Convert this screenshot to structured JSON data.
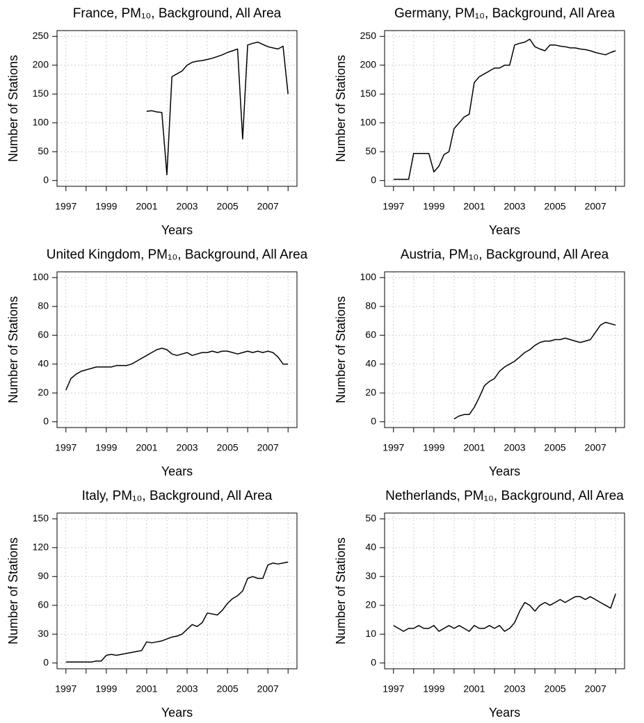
{
  "chart_data": [
    {
      "type": "line",
      "title": "France, PM₁₀, Background, All Area",
      "xlabel": "Years",
      "ylabel": "Number of Stations",
      "color": "#000000",
      "grid": true,
      "x": [
        1997,
        1997.25,
        1997.5,
        1997.75,
        1998,
        1998.25,
        1998.5,
        1998.75,
        1999,
        1999.25,
        1999.5,
        1999.75,
        2000,
        2000.25,
        2000.5,
        2000.75,
        2001,
        2001.25,
        2001.5,
        2001.75,
        2002,
        2002.25,
        2002.5,
        2002.75,
        2003,
        2003.25,
        2003.5,
        2003.75,
        2004,
        2004.25,
        2004.5,
        2004.75,
        2005,
        2005.25,
        2005.5,
        2005.75,
        2006,
        2006.25,
        2006.5,
        2006.75,
        2007,
        2007.25,
        2007.5,
        2007.75,
        2008
      ],
      "values": [
        null,
        null,
        null,
        null,
        null,
        null,
        null,
        null,
        null,
        null,
        null,
        null,
        null,
        null,
        null,
        null,
        120,
        121,
        119,
        118,
        10,
        180,
        185,
        190,
        200,
        205,
        207,
        208,
        210,
        212,
        215,
        218,
        222,
        225,
        228,
        72,
        235,
        238,
        240,
        236,
        232,
        230,
        228,
        233,
        150
      ],
      "xlim": [
        1996.56,
        2008.44
      ],
      "xticks": [
        1997,
        1999,
        2001,
        2003,
        2005,
        2007
      ],
      "xminor": [
        1998,
        2000,
        2002,
        2004,
        2006,
        2008
      ],
      "ylim": [
        -10,
        260
      ],
      "yticks": [
        0,
        50,
        100,
        150,
        200,
        250
      ]
    },
    {
      "type": "line",
      "title": "Germany, PM₁₀, Background, All Area",
      "xlabel": "Years",
      "ylabel": "Number of Stations",
      "color": "#000000",
      "grid": true,
      "x": [
        1997,
        1997.25,
        1997.5,
        1997.75,
        1998,
        1998.25,
        1998.5,
        1998.75,
        1999,
        1999.25,
        1999.5,
        1999.75,
        2000,
        2000.25,
        2000.5,
        2000.75,
        2001,
        2001.25,
        2001.5,
        2001.75,
        2002,
        2002.25,
        2002.5,
        2002.75,
        2003,
        2003.25,
        2003.5,
        2003.75,
        2004,
        2004.25,
        2004.5,
        2004.75,
        2005,
        2005.25,
        2005.5,
        2005.75,
        2006,
        2006.25,
        2006.5,
        2006.75,
        2007,
        2007.25,
        2007.5,
        2007.75,
        2008
      ],
      "values": [
        2,
        2,
        2,
        2,
        47,
        47,
        47,
        47,
        15,
        25,
        45,
        50,
        90,
        100,
        110,
        115,
        170,
        180,
        185,
        190,
        195,
        195,
        200,
        200,
        235,
        238,
        240,
        245,
        232,
        228,
        225,
        235,
        235,
        233,
        232,
        230,
        230,
        228,
        227,
        225,
        222,
        220,
        218,
        222,
        225
      ],
      "xlim": [
        1996.56,
        2008.44
      ],
      "xticks": [
        1997,
        1999,
        2001,
        2003,
        2005,
        2007
      ],
      "xminor": [
        1998,
        2000,
        2002,
        2004,
        2006,
        2008
      ],
      "ylim": [
        -10,
        260
      ],
      "yticks": [
        0,
        50,
        100,
        150,
        200,
        250
      ]
    },
    {
      "type": "line",
      "title": "United Kingdom, PM₁₀, Background, All Area",
      "xlabel": "Years",
      "ylabel": "Number of Stations",
      "color": "#000000",
      "grid": true,
      "x": [
        1997,
        1997.25,
        1997.5,
        1997.75,
        1998,
        1998.25,
        1998.5,
        1998.75,
        1999,
        1999.25,
        1999.5,
        1999.75,
        2000,
        2000.25,
        2000.5,
        2000.75,
        2001,
        2001.25,
        2001.5,
        2001.75,
        2002,
        2002.25,
        2002.5,
        2002.75,
        2003,
        2003.25,
        2003.5,
        2003.75,
        2004,
        2004.25,
        2004.5,
        2004.75,
        2005,
        2005.25,
        2005.5,
        2005.75,
        2006,
        2006.25,
        2006.5,
        2006.75,
        2007,
        2007.25,
        2007.5,
        2007.75,
        2008
      ],
      "values": [
        22,
        30,
        33,
        35,
        36,
        37,
        38,
        38,
        38,
        38,
        39,
        39,
        39,
        40,
        42,
        44,
        46,
        48,
        50,
        51,
        50,
        47,
        46,
        47,
        48,
        46,
        47,
        48,
        48,
        49,
        48,
        49,
        49,
        48,
        47,
        48,
        49,
        48,
        49,
        48,
        49,
        48,
        45,
        40,
        40
      ],
      "xlim": [
        1996.56,
        2008.44
      ],
      "xticks": [
        1997,
        1999,
        2001,
        2003,
        2005,
        2007
      ],
      "xminor": [
        1998,
        2000,
        2002,
        2004,
        2006,
        2008
      ],
      "ylim": [
        -4,
        104
      ],
      "yticks": [
        0,
        20,
        40,
        60,
        80,
        100
      ]
    },
    {
      "type": "line",
      "title": "Austria, PM₁₀, Background, All Area",
      "xlabel": "Years",
      "ylabel": "Number of Stations",
      "color": "#000000",
      "grid": true,
      "x": [
        1997,
        1997.25,
        1997.5,
        1997.75,
        1998,
        1998.25,
        1998.5,
        1998.75,
        1999,
        1999.25,
        1999.5,
        1999.75,
        2000,
        2000.25,
        2000.5,
        2000.75,
        2001,
        2001.25,
        2001.5,
        2001.75,
        2002,
        2002.25,
        2002.5,
        2002.75,
        2003,
        2003.25,
        2003.5,
        2003.75,
        2004,
        2004.25,
        2004.5,
        2004.75,
        2005,
        2005.25,
        2005.5,
        2005.75,
        2006,
        2006.25,
        2006.5,
        2006.75,
        2007,
        2007.25,
        2007.5,
        2007.75,
        2008
      ],
      "values": [
        null,
        null,
        null,
        null,
        null,
        null,
        null,
        null,
        null,
        null,
        null,
        null,
        2,
        4,
        5,
        5,
        10,
        17,
        25,
        28,
        30,
        35,
        38,
        40,
        42,
        45,
        48,
        50,
        53,
        55,
        56,
        56,
        57,
        57,
        58,
        57,
        56,
        55,
        56,
        57,
        62,
        67,
        69,
        68,
        67
      ],
      "xlim": [
        1996.56,
        2008.44
      ],
      "xticks": [
        1997,
        1999,
        2001,
        2003,
        2005,
        2007
      ],
      "xminor": [
        1998,
        2000,
        2002,
        2004,
        2006,
        2008
      ],
      "ylim": [
        -4,
        104
      ],
      "yticks": [
        0,
        20,
        40,
        60,
        80,
        100
      ]
    },
    {
      "type": "line",
      "title": "Italy, PM₁₀, Background, All Area",
      "xlabel": "Years",
      "ylabel": "Number of Stations",
      "color": "#000000",
      "grid": true,
      "x": [
        1997,
        1997.25,
        1997.5,
        1997.75,
        1998,
        1998.25,
        1998.5,
        1998.75,
        1999,
        1999.25,
        1999.5,
        1999.75,
        2000,
        2000.25,
        2000.5,
        2000.75,
        2001,
        2001.25,
        2001.5,
        2001.75,
        2002,
        2002.25,
        2002.5,
        2002.75,
        2003,
        2003.25,
        2003.5,
        2003.75,
        2004,
        2004.25,
        2004.5,
        2004.75,
        2005,
        2005.25,
        2005.5,
        2005.75,
        2006,
        2006.25,
        2006.5,
        2006.75,
        2007,
        2007.25,
        2007.5,
        2007.75,
        2008
      ],
      "values": [
        1,
        1,
        1,
        1,
        1,
        1,
        2,
        2,
        8,
        9,
        8,
        9,
        10,
        11,
        12,
        13,
        22,
        21,
        22,
        23,
        25,
        27,
        28,
        30,
        35,
        40,
        38,
        42,
        52,
        51,
        50,
        55,
        62,
        67,
        70,
        75,
        88,
        90,
        88,
        88,
        102,
        104,
        103,
        104,
        105
      ],
      "xlim": [
        1996.56,
        2008.44
      ],
      "xticks": [
        1997,
        1999,
        2001,
        2003,
        2005,
        2007
      ],
      "xminor": [
        1998,
        2000,
        2002,
        2004,
        2006,
        2008
      ],
      "ylim": [
        -6,
        156
      ],
      "yticks": [
        0,
        30,
        60,
        90,
        120,
        150
      ]
    },
    {
      "type": "line",
      "title": "Netherlands, PM₁₀, Background, All Area",
      "xlabel": "Years",
      "ylabel": "Number of Stations",
      "color": "#000000",
      "grid": true,
      "x": [
        1997,
        1997.25,
        1997.5,
        1997.75,
        1998,
        1998.25,
        1998.5,
        1998.75,
        1999,
        1999.25,
        1999.5,
        1999.75,
        2000,
        2000.25,
        2000.5,
        2000.75,
        2001,
        2001.25,
        2001.5,
        2001.75,
        2002,
        2002.25,
        2002.5,
        2002.75,
        2003,
        2003.25,
        2003.5,
        2003.75,
        2004,
        2004.25,
        2004.5,
        2004.75,
        2005,
        2005.25,
        2005.5,
        2005.75,
        2006,
        2006.25,
        2006.5,
        2006.75,
        2007,
        2007.25,
        2007.5,
        2007.75,
        2008
      ],
      "values": [
        13,
        12,
        11,
        12,
        12,
        13,
        12,
        12,
        13,
        11,
        12,
        13,
        12,
        13,
        12,
        11,
        13,
        12,
        12,
        13,
        12,
        13,
        11,
        12,
        14,
        18,
        21,
        20,
        18,
        20,
        21,
        20,
        21,
        22,
        21,
        22,
        23,
        23,
        22,
        23,
        22,
        21,
        20,
        19,
        24
      ],
      "xlim": [
        1996.56,
        2008.44
      ],
      "xticks": [
        1997,
        1999,
        2001,
        2003,
        2005,
        2007
      ],
      "xminor": [
        1998,
        2000,
        2002,
        2004,
        2006,
        2008
      ],
      "ylim": [
        -2,
        52
      ],
      "yticks": [
        0,
        10,
        20,
        30,
        40,
        50
      ]
    }
  ]
}
